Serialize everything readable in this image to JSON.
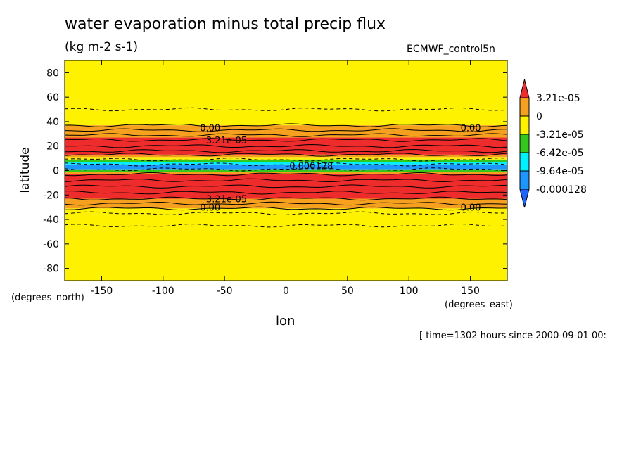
{
  "chart_data": {
    "type": "heatmap",
    "title": "water evaporation minus total precip flux",
    "units": "(kg m-2 s-1)",
    "model": "ECMWF_control5n",
    "xlabel": "lon",
    "ylabel": "latitude",
    "x_units_label": "(degrees_east)",
    "y_units_label": "(degrees_north)",
    "timestamp": "[ time=1302 hours since 2000-09-01 00:",
    "xlim": [
      -180,
      180
    ],
    "ylim": [
      -90,
      90
    ],
    "xticks": [
      -150,
      -100,
      -50,
      0,
      50,
      100,
      150
    ],
    "yticks": [
      80,
      60,
      40,
      20,
      0,
      -20,
      -40,
      -60,
      -80
    ],
    "xtick_labels": [
      "-150",
      "-100",
      "-50",
      "0",
      "50",
      "100",
      "150"
    ],
    "ytick_labels": [
      "80",
      "60",
      "40",
      "20",
      "0",
      "-20",
      "-40",
      "-60",
      "-80"
    ],
    "colorbar": {
      "labels": [
        "3.21e-05",
        "0",
        "-3.21e-05",
        "-6.42e-05",
        "-9.64e-05",
        "-0.000128"
      ],
      "colors": [
        "#ef2c2c",
        "#f5a01e",
        "#fff200",
        "#34c81c",
        "#00f0ff",
        "#1e96ff",
        "#1e64ff"
      ]
    },
    "bands": [
      {
        "lat_top": 90,
        "lat_bottom": 37,
        "color": "#fff200"
      },
      {
        "lat_top": 37,
        "lat_bottom": 27,
        "color": "#f5a01e"
      },
      {
        "lat_top": 27,
        "lat_bottom": 13,
        "color": "#ef2c2c"
      },
      {
        "lat_top": 13,
        "lat_bottom": 11,
        "color": "#f5a01e"
      },
      {
        "lat_top": 11,
        "lat_bottom": 9,
        "color": "#fff200"
      },
      {
        "lat_top": 9,
        "lat_bottom": 7,
        "color": "#34c81c"
      },
      {
        "lat_top": 7,
        "lat_bottom": 5,
        "color": "#00f0ff"
      },
      {
        "lat_top": 5,
        "lat_bottom": 1,
        "color": "#1e96ff"
      },
      {
        "lat_top": 1,
        "lat_bottom": -1,
        "color": "#34c81c"
      },
      {
        "lat_top": -1,
        "lat_bottom": -3,
        "color": "#f5a01e"
      },
      {
        "lat_top": -3,
        "lat_bottom": -23,
        "color": "#ef2c2c"
      },
      {
        "lat_top": -23,
        "lat_bottom": -31,
        "color": "#f5a01e"
      },
      {
        "lat_top": -31,
        "lat_bottom": -90,
        "color": "#fff200"
      }
    ],
    "contours": [
      {
        "lat": 50,
        "style": "dashed"
      },
      {
        "lat": 37,
        "style": "solid"
      },
      {
        "lat": 33,
        "style": "solid"
      },
      {
        "lat": 29,
        "style": "solid"
      },
      {
        "lat": 25,
        "style": "solid"
      },
      {
        "lat": 20,
        "style": "solid"
      },
      {
        "lat": 16,
        "style": "solid"
      },
      {
        "lat": 13,
        "style": "solid"
      },
      {
        "lat": 9,
        "style": "dashed"
      },
      {
        "lat": 5,
        "style": "dashed"
      },
      {
        "lat": 1,
        "style": "dashed"
      },
      {
        "lat": -3,
        "style": "solid"
      },
      {
        "lat": -8,
        "style": "solid"
      },
      {
        "lat": -13,
        "style": "solid"
      },
      {
        "lat": -18,
        "style": "solid"
      },
      {
        "lat": -23,
        "style": "solid"
      },
      {
        "lat": -27,
        "style": "solid"
      },
      {
        "lat": -31,
        "style": "solid"
      },
      {
        "lat": -35,
        "style": "dashed"
      },
      {
        "lat": -45,
        "style": "dashed"
      }
    ],
    "contour_labels": [
      {
        "text": "0.00",
        "lon": -70,
        "lat": 35
      },
      {
        "text": "0.00",
        "lon": 142,
        "lat": 35
      },
      {
        "text": "3.21e-05",
        "lon": -65,
        "lat": 25
      },
      {
        "text": "0.00",
        "lon": -70,
        "lat": -30
      },
      {
        "text": "0.00",
        "lon": 142,
        "lat": -30
      },
      {
        "text": "3.21e-05",
        "lon": -65,
        "lat": -23
      },
      {
        "text": "-0.000128",
        "lon": 0,
        "lat": 4
      }
    ]
  }
}
